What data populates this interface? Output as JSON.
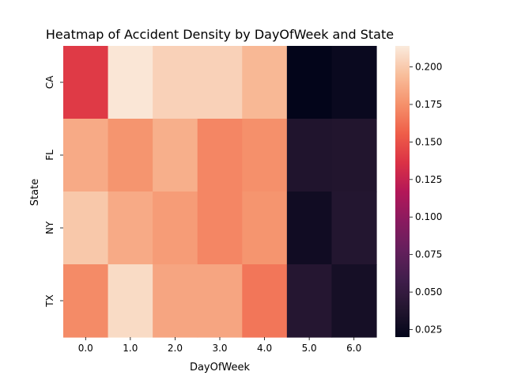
{
  "chart_data": {
    "type": "heatmap",
    "title": "Heatmap of Accident Density by DayOfWeek and State",
    "xlabel": "DayOfWeek",
    "ylabel": "State",
    "x_categories": [
      "0.0",
      "1.0",
      "2.0",
      "3.0",
      "4.0",
      "5.0",
      "6.0"
    ],
    "y_categories": [
      "CA",
      "FL",
      "NY",
      "TX"
    ],
    "values": [
      [
        0.14,
        0.212,
        0.203,
        0.203,
        0.192,
        0.02,
        0.024
      ],
      [
        0.186,
        0.177,
        0.188,
        0.171,
        0.175,
        0.037,
        0.038
      ],
      [
        0.199,
        0.186,
        0.18,
        0.171,
        0.177,
        0.028,
        0.039
      ],
      [
        0.173,
        0.207,
        0.184,
        0.184,
        0.165,
        0.04,
        0.031
      ]
    ],
    "colorbar": {
      "vmin": 0.02,
      "vmax": 0.214,
      "ticks": [
        0.025,
        0.05,
        0.075,
        0.1,
        0.125,
        0.15,
        0.175,
        0.2
      ],
      "tick_labels": [
        "0.025",
        "0.050",
        "0.075",
        "0.100",
        "0.125",
        "0.150",
        "0.175",
        "0.200"
      ],
      "colormap": "rocket"
    }
  }
}
